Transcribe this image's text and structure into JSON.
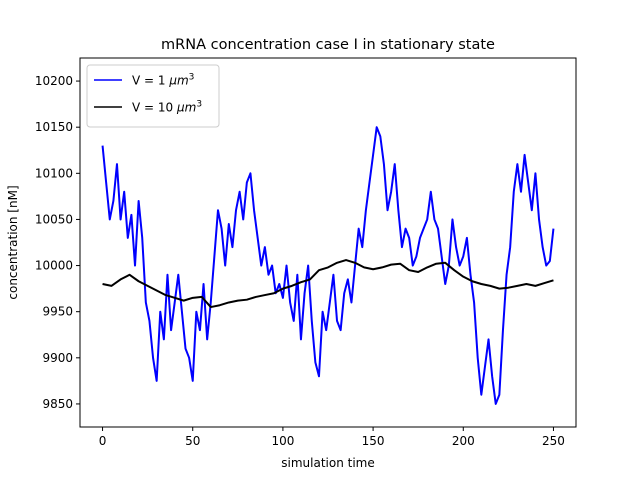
{
  "chart_data": {
    "type": "line",
    "title": "mRNA concentration case I in stationary state",
    "xlabel": "simulation time",
    "ylabel": "concentration [nM]",
    "xlim": [
      -12.5,
      262.5
    ],
    "ylim": [
      9825,
      10225
    ],
    "x_ticks": [
      0,
      50,
      100,
      150,
      200,
      250
    ],
    "y_ticks": [
      9850,
      9900,
      9950,
      10000,
      10050,
      10100,
      10150,
      10200
    ],
    "legend_position": "upper left",
    "series": [
      {
        "name": "V = 1 μm³",
        "legend_label_main": "V = 1 ",
        "legend_label_unit": "μm",
        "legend_label_sup": "3",
        "color": "#0000ff",
        "x": [
          0,
          2,
          4,
          6,
          8,
          10,
          12,
          14,
          16,
          18,
          20,
          22,
          24,
          26,
          28,
          30,
          32,
          34,
          36,
          38,
          40,
          42,
          44,
          46,
          48,
          50,
          52,
          54,
          56,
          58,
          60,
          62,
          64,
          66,
          68,
          70,
          72,
          74,
          76,
          78,
          80,
          82,
          84,
          86,
          88,
          90,
          92,
          94,
          96,
          98,
          100,
          102,
          104,
          106,
          108,
          110,
          112,
          114,
          116,
          118,
          120,
          122,
          124,
          126,
          128,
          130,
          132,
          134,
          136,
          138,
          140,
          142,
          144,
          146,
          148,
          150,
          152,
          154,
          156,
          158,
          160,
          162,
          164,
          166,
          168,
          170,
          172,
          174,
          176,
          178,
          180,
          182,
          184,
          186,
          188,
          190,
          192,
          194,
          196,
          198,
          200,
          202,
          204,
          206,
          208,
          210,
          212,
          214,
          216,
          218,
          220,
          222,
          224,
          226,
          228,
          230,
          232,
          234,
          236,
          238,
          240,
          242,
          244,
          246,
          248,
          250
        ],
        "values": [
          10130,
          10090,
          10050,
          10070,
          10110,
          10050,
          10080,
          10030,
          10055,
          10000,
          10070,
          10030,
          9960,
          9940,
          9900,
          9875,
          9950,
          9920,
          9990,
          9930,
          9960,
          9990,
          9950,
          9910,
          9900,
          9875,
          9950,
          9930,
          9980,
          9920,
          9960,
          10010,
          10060,
          10040,
          10000,
          10045,
          10020,
          10060,
          10080,
          10050,
          10090,
          10100,
          10060,
          10030,
          10000,
          10020,
          9990,
          10000,
          9970,
          9980,
          9965,
          10000,
          9960,
          9940,
          9990,
          9920,
          9970,
          10000,
          9940,
          9895,
          9880,
          9950,
          9930,
          9960,
          9990,
          9940,
          9930,
          9970,
          9985,
          9960,
          10000,
          10040,
          10020,
          10060,
          10090,
          10120,
          10150,
          10140,
          10110,
          10060,
          10080,
          10110,
          10060,
          10020,
          10040,
          10030,
          10000,
          10010,
          10030,
          10040,
          10050,
          10080,
          10050,
          10040,
          10010,
          9980,
          10000,
          10050,
          10020,
          10000,
          10010,
          10030,
          9990,
          9960,
          9900,
          9860,
          9890,
          9920,
          9880,
          9850,
          9860,
          9930,
          9990,
          10020,
          10080,
          10110,
          10080,
          10120,
          10090,
          10060,
          10100,
          10050,
          10020,
          10000,
          10005,
          10040
        ]
      },
      {
        "name": "V = 10 μm³",
        "legend_label_main": "V = 10 ",
        "legend_label_unit": "μm",
        "legend_label_sup": "3",
        "color": "#000000",
        "x": [
          0,
          5,
          10,
          15,
          20,
          25,
          30,
          35,
          40,
          45,
          50,
          55,
          60,
          65,
          70,
          75,
          80,
          85,
          90,
          95,
          100,
          105,
          110,
          115,
          120,
          125,
          130,
          135,
          140,
          145,
          150,
          155,
          160,
          165,
          170,
          175,
          180,
          185,
          190,
          195,
          200,
          205,
          210,
          215,
          220,
          225,
          230,
          235,
          240,
          245,
          250
        ],
        "values": [
          9980,
          9978,
          9985,
          9990,
          9983,
          9978,
          9973,
          9968,
          9965,
          9962,
          9965,
          9966,
          9955,
          9957,
          9960,
          9962,
          9963,
          9966,
          9968,
          9970,
          9975,
          9978,
          9982,
          9985,
          9995,
          9998,
          10003,
          10006,
          10003,
          9998,
          9996,
          9998,
          10001,
          10002,
          9995,
          9993,
          9998,
          10002,
          10003,
          9995,
          9988,
          9983,
          9980,
          9978,
          9975,
          9976,
          9978,
          9980,
          9978,
          9981,
          9984
        ]
      }
    ]
  }
}
